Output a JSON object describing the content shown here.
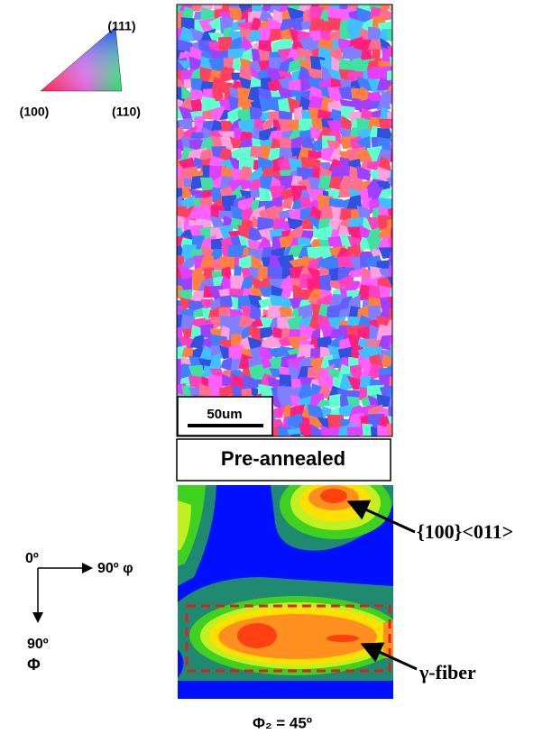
{
  "ipf": {
    "corner_111": "(111)",
    "corner_100": "(100)",
    "corner_110": "(110)"
  },
  "ebsd": {
    "scale_bar": "50um",
    "label": "Pre-annealed"
  },
  "odf": {
    "peak_label": "{100}<011>",
    "fiber_label": "γ-fiber",
    "section": "Φ₂ = 45º"
  },
  "axes": {
    "origin": "0º",
    "horizontal": "90º φ",
    "vertical_top": "90º",
    "vertical_bottom": "Φ"
  }
}
